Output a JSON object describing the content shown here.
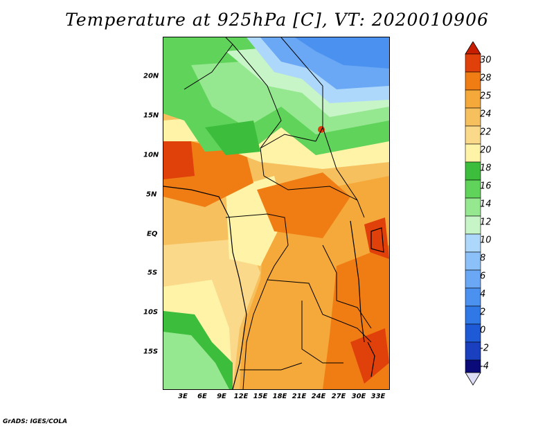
{
  "title": "Temperature at 925hPa [C], VT: 2020010906",
  "footer": "GrADS: IGES/COLA",
  "colors": {
    "c_m4": "#0a0a78",
    "c_m2": "#1a3fbf",
    "c_0": "#1e5ad6",
    "c_2": "#2f78e6",
    "c_4": "#4b92f0",
    "c_6": "#6aa8f5",
    "c_8": "#8cc0f8",
    "c_10": "#aed8fb",
    "c_12": "#c8f5c8",
    "c_14": "#96e890",
    "c_16": "#5fd35a",
    "c_18": "#3cbd3c",
    "c_20": "#fff3a8",
    "c_22": "#fbd98a",
    "c_24": "#f7c05e",
    "c_25": "#f5a93a",
    "c_28": "#f07d14",
    "c_30": "#e0400a",
    "c_top": "#c81e00"
  },
  "map": {
    "lat_labels": [
      "20N",
      "15N",
      "10N",
      "5N",
      "EQ",
      "5S",
      "10S",
      "15S"
    ],
    "lon_labels": [
      "3E",
      "6E",
      "9E",
      "12E",
      "15E",
      "18E",
      "21E",
      "24E",
      "27E",
      "30E",
      "33E"
    ]
  },
  "colorbar": {
    "labels": [
      "30",
      "28",
      "25",
      "24",
      "22",
      "20",
      "18",
      "16",
      "14",
      "12",
      "10",
      "8",
      "6",
      "4",
      "2",
      "0",
      "-2",
      "-4"
    ]
  }
}
